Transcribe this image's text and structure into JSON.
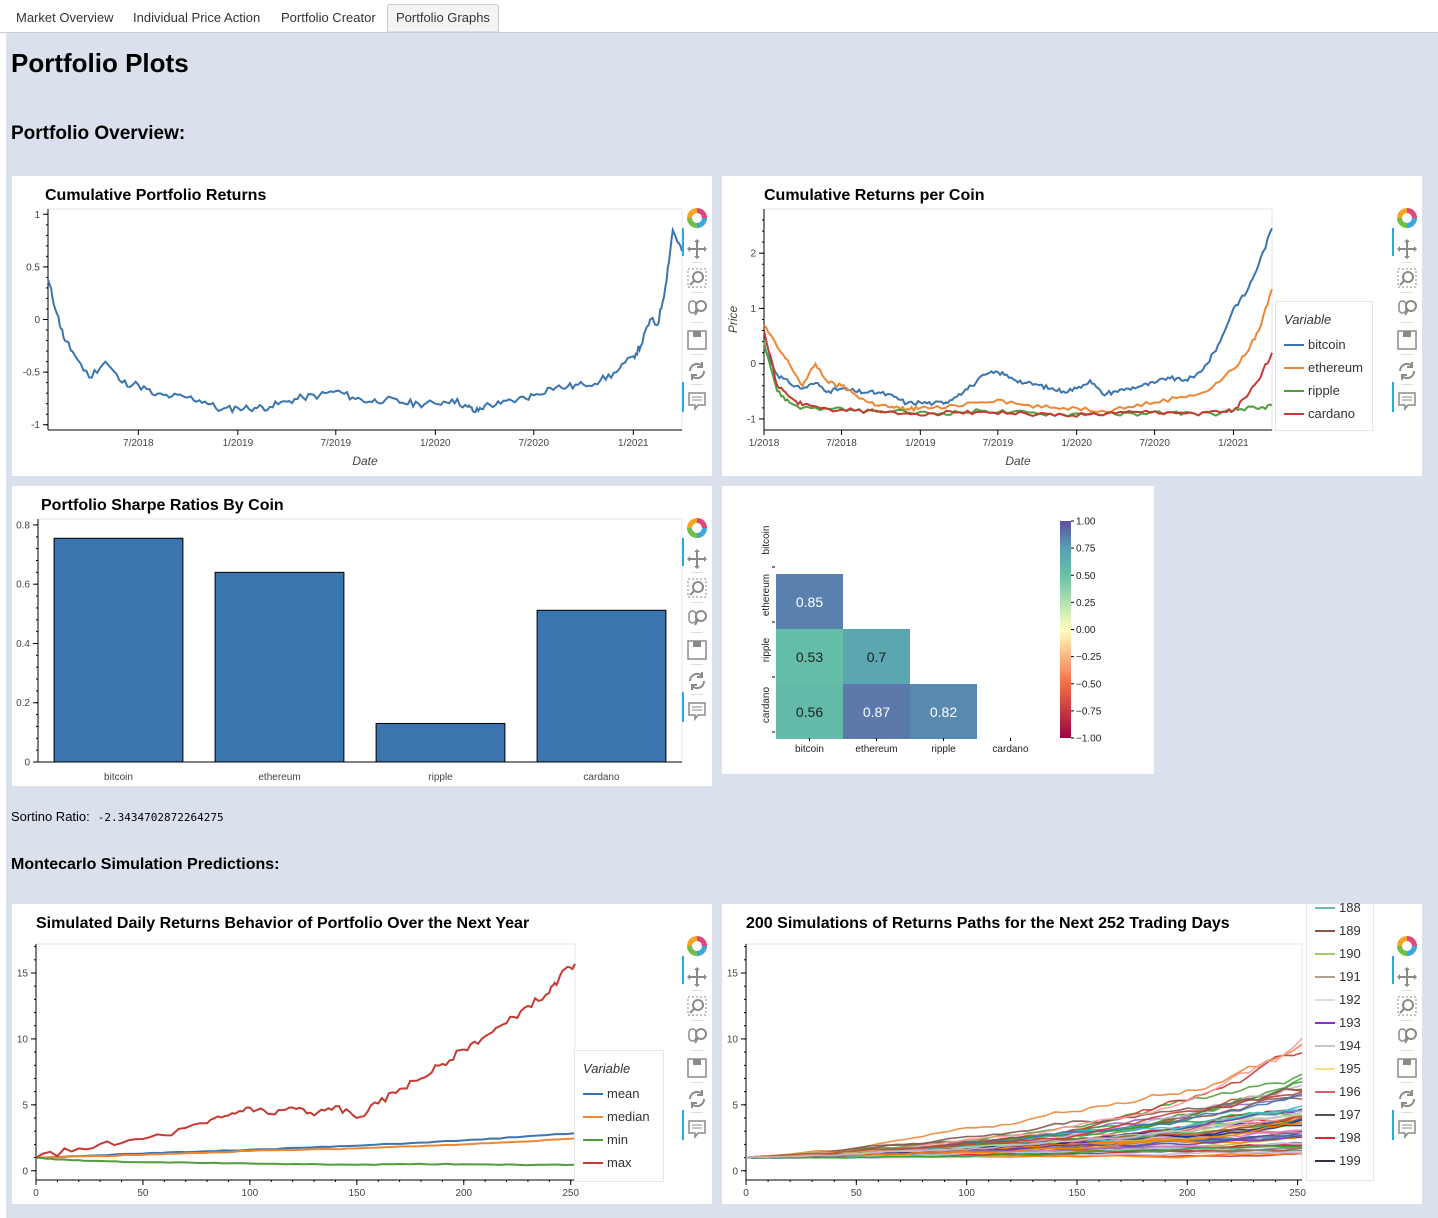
{
  "tabs": [
    {
      "label": "Market Overview",
      "active": false
    },
    {
      "label": "Individual Price Action",
      "active": false
    },
    {
      "label": "Portfolio Creator",
      "active": false
    },
    {
      "label": "Portfolio Graphs",
      "active": true
    }
  ],
  "page": {
    "title": "Portfolio Plots",
    "overview_heading": "Portfolio Overview:",
    "montecarlo_heading": "Montecarlo Simulation Predictions:"
  },
  "sortino": {
    "label": "Sortino Ratio:",
    "value": "-2.3434702872264275"
  },
  "toolbar_icons": [
    "bokeh-logo-icon",
    "pan-icon",
    "box-zoom-icon",
    "wheel-zoom-icon",
    "save-icon",
    "reset-icon",
    "hover-icon"
  ],
  "colors": {
    "blue": "#3b75af",
    "orange": "#ef8636",
    "green": "#519e3e",
    "red": "#c53a32",
    "bar_fill": "#3b75af",
    "page_bg": "#dae0ec"
  },
  "chart_data": [
    {
      "id": "cumulative_portfolio",
      "type": "line",
      "title": "Cumulative Portfolio Returns",
      "xlabel": "Date",
      "ylabel": "",
      "x_ticks": [
        "7/2018",
        "1/2019",
        "7/2019",
        "1/2020",
        "7/2020",
        "1/2021"
      ],
      "y_ticks": [
        "1",
        "0.5",
        "0",
        "-0.5",
        "-1"
      ],
      "xlim": [
        "2018-01-15",
        "2021-04-01"
      ],
      "ylim": [
        -1.05,
        1.05
      ],
      "series": [
        {
          "color": "#3b75af",
          "x": [
            "2018-01-15",
            "2018-02-01",
            "2018-02-15",
            "2018-03-01",
            "2018-04-01",
            "2018-05-01",
            "2018-06-01",
            "2018-07-01",
            "2018-08-01",
            "2018-09-01",
            "2018-10-01",
            "2018-11-01",
            "2018-12-01",
            "2019-01-01",
            "2019-02-01",
            "2019-03-01",
            "2019-04-01",
            "2019-05-01",
            "2019-06-01",
            "2019-07-01",
            "2019-08-01",
            "2019-09-01",
            "2019-10-01",
            "2019-11-01",
            "2019-12-01",
            "2020-01-01",
            "2020-02-01",
            "2020-03-01",
            "2020-03-15",
            "2020-04-01",
            "2020-05-01",
            "2020-06-01",
            "2020-07-01",
            "2020-08-01",
            "2020-09-01",
            "2020-10-01",
            "2020-11-01",
            "2020-12-01",
            "2021-01-01",
            "2021-01-15",
            "2021-02-01",
            "2021-02-15",
            "2021-03-01",
            "2021-03-15",
            "2021-04-01"
          ],
          "y": [
            0.38,
            0.05,
            -0.2,
            -0.3,
            -0.55,
            -0.4,
            -0.6,
            -0.62,
            -0.72,
            -0.73,
            -0.74,
            -0.78,
            -0.86,
            -0.84,
            -0.84,
            -0.83,
            -0.78,
            -0.74,
            -0.72,
            -0.68,
            -0.74,
            -0.78,
            -0.76,
            -0.79,
            -0.8,
            -0.8,
            -0.76,
            -0.83,
            -0.88,
            -0.82,
            -0.8,
            -0.76,
            -0.72,
            -0.65,
            -0.64,
            -0.62,
            -0.58,
            -0.5,
            -0.35,
            -0.25,
            0.0,
            -0.05,
            0.3,
            0.85,
            0.65
          ]
        }
      ]
    },
    {
      "id": "cumulative_per_coin",
      "type": "line",
      "title": "Cumulative Returns per Coin",
      "xlabel": "Date",
      "ylabel": "Price",
      "x_ticks": [
        "1/2018",
        "7/2018",
        "1/2019",
        "7/2019",
        "1/2020",
        "7/2020",
        "1/2021"
      ],
      "y_ticks": [
        "2",
        "1",
        "0",
        "-1"
      ],
      "xlim": [
        "2018-01-01",
        "2021-04-01"
      ],
      "ylim": [
        -1.2,
        2.8
      ],
      "legend_title": "Variable",
      "series": [
        {
          "name": "bitcoin",
          "color": "#3b75af",
          "x": [
            "2018-01-01",
            "2018-02-01",
            "2018-03-01",
            "2018-04-01",
            "2018-05-01",
            "2018-06-01",
            "2018-07-01",
            "2018-08-01",
            "2018-09-01",
            "2018-10-01",
            "2018-11-01",
            "2018-12-01",
            "2019-01-01",
            "2019-02-01",
            "2019-03-01",
            "2019-04-01",
            "2019-05-01",
            "2019-06-01",
            "2019-07-01",
            "2019-08-01",
            "2019-09-01",
            "2019-10-01",
            "2019-11-01",
            "2019-12-01",
            "2020-01-01",
            "2020-02-01",
            "2020-03-01",
            "2020-04-01",
            "2020-05-01",
            "2020-06-01",
            "2020-07-01",
            "2020-08-01",
            "2020-09-01",
            "2020-10-01",
            "2020-11-01",
            "2020-12-01",
            "2021-01-01",
            "2021-02-01",
            "2021-03-01",
            "2021-04-01"
          ],
          "y": [
            0.3,
            -0.2,
            -0.35,
            -0.45,
            -0.35,
            -0.5,
            -0.45,
            -0.5,
            -0.52,
            -0.53,
            -0.6,
            -0.72,
            -0.7,
            -0.72,
            -0.7,
            -0.55,
            -0.4,
            -0.2,
            -0.15,
            -0.25,
            -0.35,
            -0.38,
            -0.45,
            -0.5,
            -0.45,
            -0.3,
            -0.55,
            -0.5,
            -0.45,
            -0.4,
            -0.35,
            -0.25,
            -0.3,
            -0.25,
            0.0,
            0.4,
            1.0,
            1.3,
            1.8,
            2.45
          ]
        },
        {
          "name": "ethereum",
          "color": "#ef8636",
          "x": [
            "2018-01-01",
            "2018-02-01",
            "2018-03-01",
            "2018-04-01",
            "2018-05-01",
            "2018-06-01",
            "2018-07-01",
            "2018-08-01",
            "2018-09-01",
            "2018-10-01",
            "2018-11-01",
            "2018-12-01",
            "2019-01-01",
            "2019-03-01",
            "2019-05-01",
            "2019-07-01",
            "2019-09-01",
            "2019-11-01",
            "2020-01-01",
            "2020-03-01",
            "2020-05-01",
            "2020-07-01",
            "2020-09-01",
            "2020-11-01",
            "2021-01-01",
            "2021-02-01",
            "2021-03-01",
            "2021-04-01"
          ],
          "y": [
            0.7,
            0.3,
            0.0,
            -0.4,
            0.0,
            -0.35,
            -0.4,
            -0.55,
            -0.7,
            -0.75,
            -0.8,
            -0.82,
            -0.8,
            -0.8,
            -0.7,
            -0.65,
            -0.75,
            -0.8,
            -0.8,
            -0.85,
            -0.78,
            -0.7,
            -0.6,
            -0.5,
            -0.1,
            0.2,
            0.6,
            1.35
          ]
        },
        {
          "name": "ripple",
          "color": "#519e3e",
          "x": [
            "2018-01-01",
            "2018-02-01",
            "2018-03-01",
            "2018-04-01",
            "2018-06-01",
            "2018-08-01",
            "2018-10-01",
            "2018-12-01",
            "2019-02-01",
            "2019-04-01",
            "2019-06-01",
            "2019-08-01",
            "2019-10-01",
            "2019-12-01",
            "2020-02-01",
            "2020-04-01",
            "2020-06-01",
            "2020-08-01",
            "2020-10-01",
            "2020-12-01",
            "2021-01-01",
            "2021-02-01",
            "2021-03-01",
            "2021-04-01"
          ],
          "y": [
            0.4,
            -0.5,
            -0.7,
            -0.8,
            -0.82,
            -0.85,
            -0.86,
            -0.88,
            -0.9,
            -0.88,
            -0.85,
            -0.88,
            -0.9,
            -0.92,
            -0.9,
            -0.92,
            -0.9,
            -0.88,
            -0.9,
            -0.9,
            -0.85,
            -0.8,
            -0.82,
            -0.75
          ]
        },
        {
          "name": "cardano",
          "color": "#c53a32",
          "x": [
            "2018-01-01",
            "2018-02-01",
            "2018-03-01",
            "2018-04-01",
            "2018-06-01",
            "2018-08-01",
            "2018-10-01",
            "2018-12-01",
            "2019-02-01",
            "2019-04-01",
            "2019-06-01",
            "2019-08-01",
            "2019-10-01",
            "2019-12-01",
            "2020-02-01",
            "2020-04-01",
            "2020-06-01",
            "2020-08-01",
            "2020-10-01",
            "2020-12-01",
            "2021-01-01",
            "2021-02-01",
            "2021-03-01",
            "2021-04-01"
          ],
          "y": [
            0.6,
            -0.4,
            -0.6,
            -0.75,
            -0.82,
            -0.85,
            -0.88,
            -0.9,
            -0.9,
            -0.88,
            -0.87,
            -0.9,
            -0.92,
            -0.93,
            -0.92,
            -0.9,
            -0.88,
            -0.88,
            -0.9,
            -0.88,
            -0.85,
            -0.6,
            -0.3,
            0.2
          ]
        }
      ]
    },
    {
      "id": "sharpe_ratios",
      "type": "bar",
      "title": "Portfolio Sharpe Ratios By Coin",
      "categories": [
        "bitcoin",
        "ethereum",
        "ripple",
        "cardano"
      ],
      "values": [
        0.755,
        0.64,
        0.13,
        0.512
      ],
      "y_ticks": [
        "0.8",
        "0.6",
        "0.4",
        "0.2",
        "0"
      ],
      "ylim": [
        0,
        0.82
      ]
    },
    {
      "id": "correlation_heatmap",
      "type": "heatmap",
      "rows": [
        "bitcoin",
        "ethereum",
        "ripple",
        "cardano"
      ],
      "cols": [
        "bitcoin",
        "ethereum",
        "ripple",
        "cardano"
      ],
      "cells": [
        {
          "row": "ethereum",
          "col": "bitcoin",
          "value": 0.85,
          "label": "0.85"
        },
        {
          "row": "ripple",
          "col": "bitcoin",
          "value": 0.53,
          "label": "0.53"
        },
        {
          "row": "ripple",
          "col": "ethereum",
          "value": 0.7,
          "label": "0.7"
        },
        {
          "row": "cardano",
          "col": "bitcoin",
          "value": 0.56,
          "label": "0.56"
        },
        {
          "row": "cardano",
          "col": "ethereum",
          "value": 0.87,
          "label": "0.87"
        },
        {
          "row": "cardano",
          "col": "ripple",
          "value": 0.82,
          "label": "0.82"
        }
      ],
      "colorbar_ticks": [
        "1.00",
        "0.75",
        "0.50",
        "0.25",
        "0.00",
        "−0.25",
        "−0.50",
        "−0.75",
        "−1.00"
      ],
      "colorbar_range": [
        -1,
        1
      ]
    },
    {
      "id": "simulated_daily_returns",
      "type": "line",
      "title": "Simulated Daily Returns Behavior of Portfolio Over the Next Year",
      "x_ticks": [
        "0",
        "50",
        "100",
        "150",
        "200",
        "250"
      ],
      "y_ticks": [
        "15",
        "10",
        "5",
        "0"
      ],
      "xlim": [
        0,
        252
      ],
      "ylim": [
        -0.7,
        17.2
      ],
      "legend_title": "Variable",
      "series": [
        {
          "name": "mean",
          "color": "#3b75af",
          "x": [
            0,
            25,
            50,
            75,
            100,
            125,
            150,
            175,
            200,
            225,
            252
          ],
          "y": [
            1.0,
            1.15,
            1.3,
            1.45,
            1.6,
            1.75,
            1.9,
            2.1,
            2.3,
            2.55,
            2.85
          ]
        },
        {
          "name": "median",
          "color": "#ef8636",
          "x": [
            0,
            25,
            50,
            75,
            100,
            125,
            150,
            175,
            200,
            225,
            252
          ],
          "y": [
            1.0,
            1.1,
            1.2,
            1.35,
            1.5,
            1.6,
            1.7,
            1.85,
            2.0,
            2.2,
            2.45
          ]
        },
        {
          "name": "min",
          "color": "#519e3e",
          "x": [
            0,
            10,
            25,
            50,
            75,
            100,
            125,
            150,
            175,
            200,
            225,
            252
          ],
          "y": [
            1.0,
            0.85,
            0.75,
            0.65,
            0.6,
            0.55,
            0.5,
            0.45,
            0.5,
            0.5,
            0.45,
            0.45
          ]
        },
        {
          "name": "max",
          "color": "#c53a32",
          "x": [
            0,
            20,
            40,
            60,
            80,
            90,
            100,
            110,
            120,
            130,
            140,
            150,
            160,
            170,
            180,
            190,
            200,
            210,
            220,
            230,
            240,
            245,
            252
          ],
          "y": [
            1.0,
            1.7,
            2.1,
            2.7,
            3.6,
            4.2,
            4.8,
            4.3,
            4.8,
            4.2,
            4.9,
            4.0,
            5.1,
            6.2,
            7.0,
            8.1,
            9.2,
            10.2,
            11.2,
            12.5,
            13.5,
            14.8,
            15.7
          ]
        }
      ]
    },
    {
      "id": "simulation_paths",
      "type": "line",
      "title": "200 Simulations of Returns Paths for the Next 252 Trading Days",
      "x_ticks": [
        "0",
        "50",
        "100",
        "150",
        "200",
        "250"
      ],
      "y_ticks": [
        "15",
        "10",
        "5",
        "0"
      ],
      "xlim": [
        0,
        252
      ],
      "ylim": [
        -0.7,
        17.2
      ],
      "legend_entries": [
        {
          "name": "188",
          "color": "#72b7b2"
        },
        {
          "name": "189",
          "color": "#8c564b"
        },
        {
          "name": "190",
          "color": "#a3c76a"
        },
        {
          "name": "191",
          "color": "#b0a092"
        },
        {
          "name": "192",
          "color": "#dddddd"
        },
        {
          "name": "193",
          "color": "#8a2be2"
        },
        {
          "name": "194",
          "color": "#c7c7c7"
        },
        {
          "name": "195",
          "color": "#f5e08c"
        },
        {
          "name": "196",
          "color": "#d95f6e"
        },
        {
          "name": "197",
          "color": "#555555"
        },
        {
          "name": "198",
          "color": "#e0253a"
        },
        {
          "name": "199",
          "color": "#3b2b4a"
        }
      ]
    }
  ]
}
